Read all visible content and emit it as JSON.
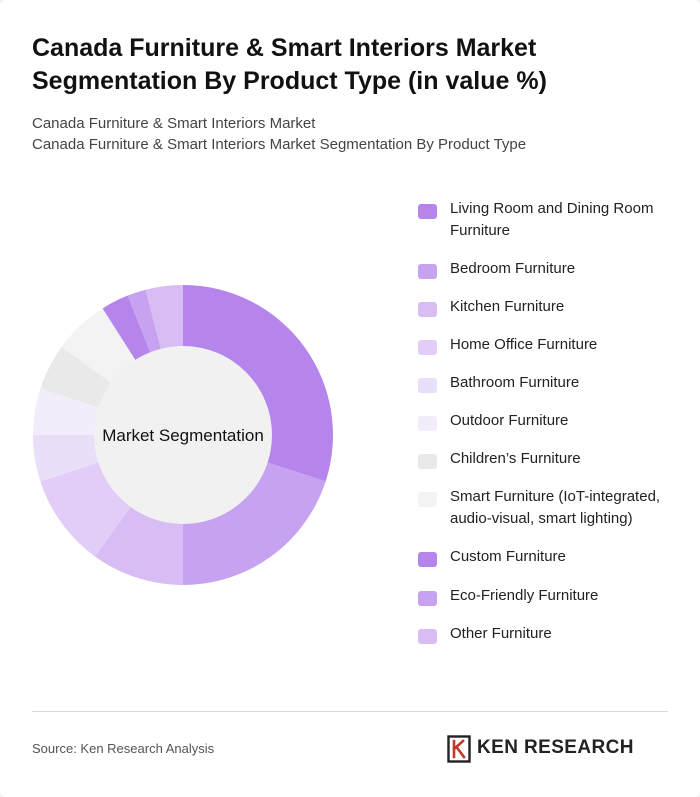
{
  "header": {
    "title": "Canada Furniture & Smart Interiors Market Segmentation By Product Type (in value %)",
    "subtitle_line1": "Canada Furniture & Smart Interiors Market",
    "subtitle_line2": "Canada Furniture & Smart Interiors Market Segmentation By Product Type"
  },
  "chart_data": {
    "type": "pie",
    "donut": true,
    "center_label": "Market Segmentation",
    "legend_position": "right",
    "categories": [
      "Living Room and Dining Room Furniture",
      "Bedroom Furniture",
      "Kitchen Furniture",
      "Home Office Furniture",
      "Bathroom Furniture",
      "Outdoor Furniture",
      "Children’s Furniture",
      "Smart Furniture (IoT-integrated, audio-visual, smart lighting)",
      "Custom Furniture",
      "Eco-Friendly Furniture",
      "Other Furniture"
    ],
    "values": [
      30,
      20,
      10,
      10,
      5,
      5,
      5,
      6,
      3,
      2,
      4
    ],
    "colors": [
      "#b585eb",
      "#c7a2f1",
      "#d7bdf4",
      "#e1cdf7",
      "#eadff9",
      "#f3edfb",
      "#e9e9e9",
      "#f3f3f3",
      "#b585eb",
      "#c7a2f1",
      "#d7bdf4"
    ]
  },
  "footer": {
    "source": "Source: Ken Research Analysis",
    "brand": "KEN RESEARCH",
    "logo_icon": "ken-research-k-logo"
  }
}
